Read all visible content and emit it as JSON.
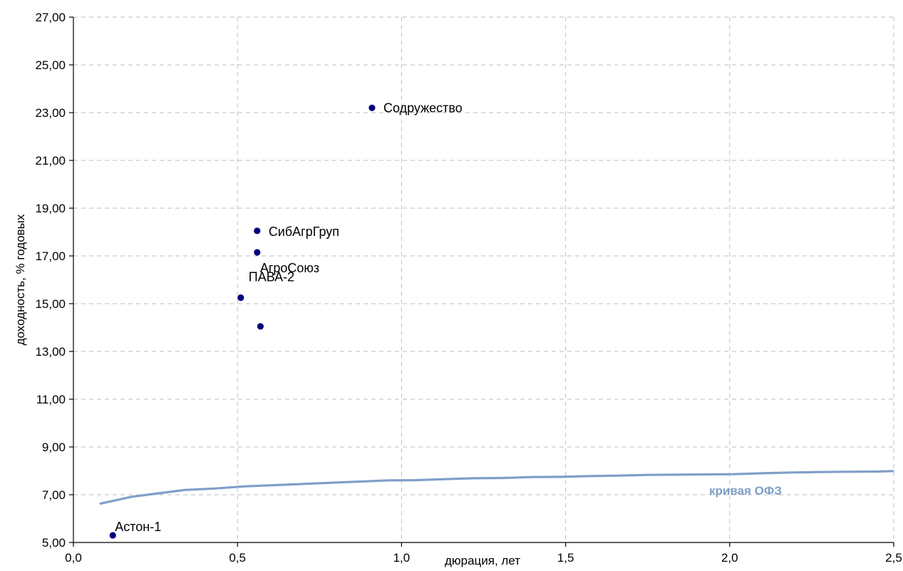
{
  "chart_data": {
    "type": "scatter",
    "xlabel": "дюрация, лет",
    "ylabel": "доходность, % годовых",
    "xlim": [
      0,
      2.5
    ],
    "ylim": [
      5,
      27
    ],
    "x_ticks": [
      "0,0",
      "0,5",
      "1,0",
      "1,5",
      "2,0",
      "2,5"
    ],
    "x_tick_values": [
      0,
      0.5,
      1.0,
      1.5,
      2.0,
      2.5
    ],
    "y_ticks": [
      "5,00",
      "7,00",
      "9,00",
      "11,00",
      "13,00",
      "15,00",
      "17,00",
      "19,00",
      "21,00",
      "23,00",
      "25,00",
      "27,00"
    ],
    "y_tick_values": [
      5,
      7,
      9,
      11,
      13,
      15,
      17,
      19,
      21,
      23,
      25,
      27
    ],
    "grid": true,
    "points": [
      {
        "label": "Содружество",
        "x": 0.91,
        "y": 23.2
      },
      {
        "label": "СибАгрГруп",
        "x": 0.56,
        "y": 18.05
      },
      {
        "label": "АгроСоюз",
        "x": 0.56,
        "y": 17.15
      },
      {
        "label": "ПАВА-2",
        "x": 0.51,
        "y": 15.25
      },
      {
        "label": "",
        "x": 0.57,
        "y": 14.05
      },
      {
        "label": "Астон-1",
        "x": 0.12,
        "y": 5.3
      }
    ],
    "curve": {
      "name": "кривая ОФЗ",
      "x": [
        0.08,
        0.18,
        0.26,
        0.34,
        0.43,
        0.52,
        0.61,
        0.7,
        0.78,
        0.87,
        0.96,
        1.04,
        1.13,
        1.22,
        1.31,
        1.4,
        1.49,
        1.57,
        1.66,
        1.75,
        1.84,
        1.93,
        2.01,
        2.1,
        2.19,
        2.27,
        2.36,
        2.45,
        2.5
      ],
      "y": [
        6.62,
        6.92,
        7.06,
        7.2,
        7.26,
        7.35,
        7.4,
        7.45,
        7.5,
        7.55,
        7.6,
        7.61,
        7.65,
        7.69,
        7.7,
        7.74,
        7.75,
        7.78,
        7.8,
        7.83,
        7.84,
        7.85,
        7.86,
        7.9,
        7.93,
        7.95,
        7.96,
        7.97,
        7.99
      ]
    },
    "colors": {
      "points": "#00007f",
      "curve": "#7f9fc8",
      "grid": "#bdbdbd"
    }
  }
}
